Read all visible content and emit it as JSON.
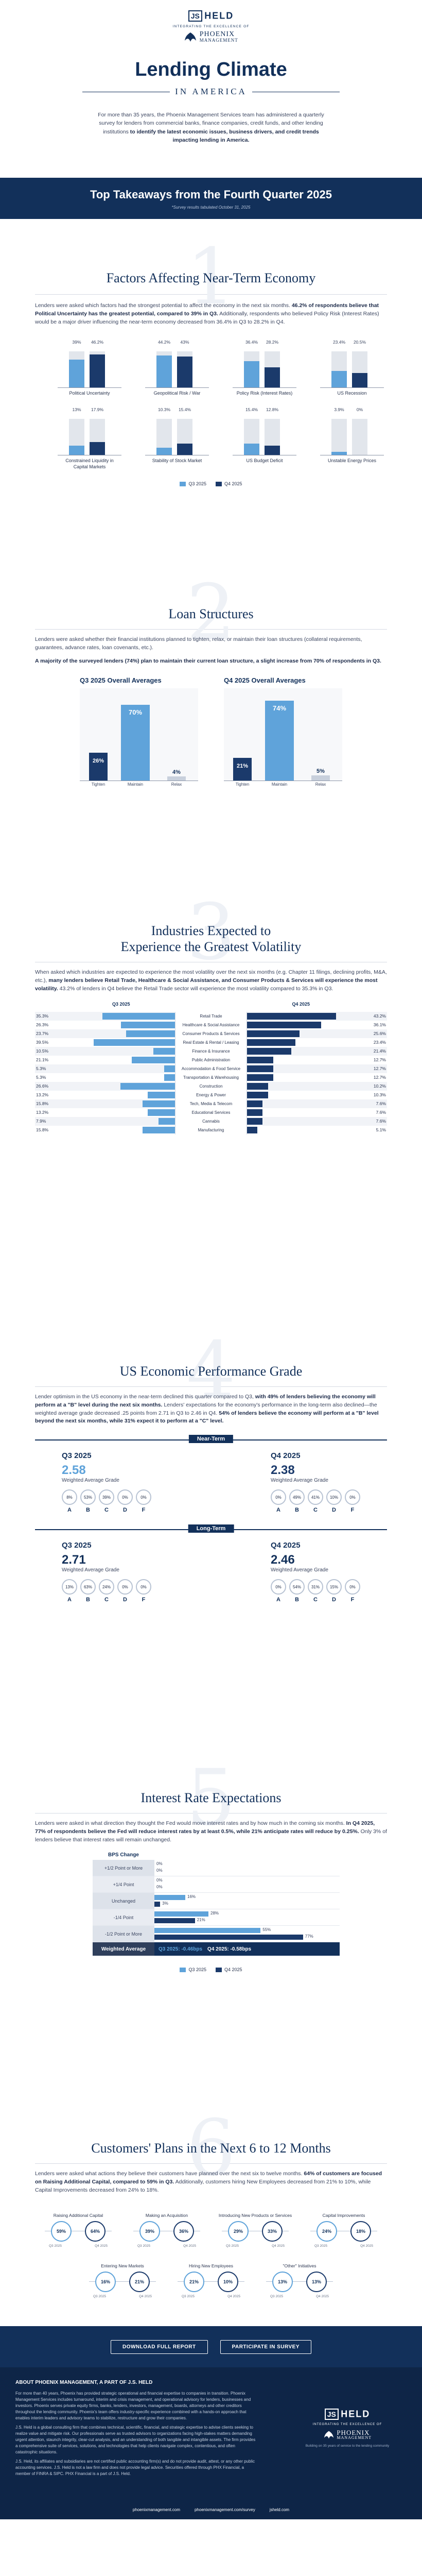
{
  "header": {
    "brand_js": "JS",
    "brand_held": "HELD",
    "tag": "INTEGRATING THE EXCELLENCE OF",
    "pm_line1": "PHOENIX",
    "pm_line2": "MANAGEMENT"
  },
  "hero": {
    "title": "Lending Climate",
    "subtitle": "IN AMERICA",
    "intro1": "For more than 35 years, the Phoenix Management Services team has administered a quarterly survey for lenders from commercial banks, finance companies, credit funds, and other lending institutions ",
    "intro_bold": "to identify the latest economic issues, business drivers, and credit trends impacting lending in America."
  },
  "banner": {
    "title": "Top Takeaways from the Fourth Quarter 2025",
    "sub": "*Survey results tabulated October 31, 2025"
  },
  "s1": {
    "num": "1",
    "title": "Factors Affecting Near-Term Economy",
    "p1": "Lenders were asked which factors had the strongest potential to affect the economy in the next six months. ",
    "p1b": "46.2% of respondents believe that Political Uncertainty has the greatest potential, compared to 39% in Q3.",
    "p1c": " Additionally, respondents who believed Policy Risk (Interest Rates) would be a major driver influencing the near-term economy decreased from 36.4% in Q3 to 28.2% in Q4.",
    "legend_q3": "Q3 2025",
    "legend_q4": "Q4 2025",
    "row1": [
      {
        "label": "Political Uncertainty",
        "q3": 39.0,
        "q4": 46.2,
        "t3": "39%",
        "t4": "46.2%"
      },
      {
        "label": "Geopolitical Risk / War",
        "q3": 44.2,
        "q4": 43.0,
        "t3": "44.2%",
        "t4": "43%"
      },
      {
        "label": "Policy Risk (Interest Rates)",
        "q3": 36.4,
        "q4": 28.2,
        "t3": "36.4%",
        "t4": "28.2%"
      },
      {
        "label": "US Recession",
        "q3": 23.4,
        "q4": 20.5,
        "t3": "23.4%",
        "t4": "20.5%"
      }
    ],
    "row2": [
      {
        "label": "Constrained Liquidity in Capital Markets",
        "q3": 13.0,
        "q4": 17.9,
        "t3": "13%",
        "t4": "17.9%"
      },
      {
        "label": "Stability of Stock Market",
        "q3": 10.3,
        "q4": 15.4,
        "t3": "10.3%",
        "t4": "15.4%"
      },
      {
        "label": "US Budget Deficit",
        "q3": 15.4,
        "q4": 12.8,
        "t3": "15.4%",
        "t4": "12.8%"
      },
      {
        "label": "Unstable Energy Prices",
        "q3": 3.9,
        "q4": 0,
        "t3": "3.9%",
        "t4": "0%"
      }
    ]
  },
  "s2": {
    "num": "2",
    "title": "Loan Structures",
    "p1": "Lenders were asked whether their financial institutions planned to tighten, relax, or maintain their loan structures (collateral requirements, guarantees, advance rates, loan covenants, etc.).",
    "p2": "A majority of the surveyed lenders (74%) plan to maintain their current loan structure, a slight increase from 70% of respondents in Q3.",
    "q3_title": "Q3 2025 Overall Averages",
    "q4_title": "Q4 2025 Overall Averages",
    "q3": [
      {
        "label": "Tighten",
        "v": 26,
        "t": "26%"
      },
      {
        "label": "Maintain",
        "v": 70,
        "t": "70%"
      },
      {
        "label": "Relax",
        "v": 4,
        "t": "4%"
      }
    ],
    "q4": [
      {
        "label": "Tighten",
        "v": 21,
        "t": "21%"
      },
      {
        "label": "Maintain",
        "v": 74,
        "t": "74%"
      },
      {
        "label": "Relax",
        "v": 5,
        "t": "5%"
      }
    ]
  },
  "s3": {
    "num": "3",
    "title1": "Industries Expected to",
    "title2": "Experience the Greatest Volatility",
    "p1": "When asked which industries are expected to experience the most volatility over the next six months (e.g. Chapter 11 filings, declining profits, M&A, etc.), ",
    "p1b": "many lenders believe Retail Trade, Healthcare & Social Assistance, and Consumer Products & Services will experience the most volatility.",
    "p1c": " 43.2% of lenders in Q4 believe the Retail Trade sector will experience the most volatility compared to 35.3% in Q3.",
    "hq3": "Q3 2025",
    "hq4": "Q4 2025",
    "rows": [
      {
        "label": "Retail Trade",
        "q3": 35.3,
        "q4": 43.2,
        "t3": "35.3%",
        "t4": "43.2%"
      },
      {
        "label": "Healthcare & Social Assistance",
        "q3": 26.3,
        "q4": 36.1,
        "t3": "26.3%",
        "t4": "36.1%"
      },
      {
        "label": "Consumer Products & Services",
        "q3": 23.7,
        "q4": 25.6,
        "t3": "23.7%",
        "t4": "25.6%"
      },
      {
        "label": "Real Estate & Rental / Leasing",
        "q3": 39.5,
        "q4": 23.4,
        "t3": "39.5%",
        "t4": "23.4%"
      },
      {
        "label": "Finance & Insurance",
        "q3": 10.5,
        "q4": 21.4,
        "t3": "10.5%",
        "t4": "21.4%"
      },
      {
        "label": "Public Administration",
        "q3": 21.1,
        "q4": 12.7,
        "t3": "21.1%",
        "t4": "12.7%"
      },
      {
        "label": "Accommodation & Food Service",
        "q3": 5.3,
        "q4": 12.7,
        "t3": "5.3%",
        "t4": "12.7%"
      },
      {
        "label": "Transportation & Warehousing",
        "q3": 5.3,
        "q4": 12.7,
        "t3": "5.3%",
        "t4": "12.7%"
      },
      {
        "label": "Construction",
        "q3": 26.6,
        "q4": 10.2,
        "t3": "26.6%",
        "t4": "10.2%"
      },
      {
        "label": "Energy & Power",
        "q3": 13.2,
        "q4": 10.3,
        "t3": "13.2%",
        "t4": "10.3%"
      },
      {
        "label": "Tech, Media & Telecom",
        "q3": 15.8,
        "q4": 7.6,
        "t3": "15.8%",
        "t4": "7.6%"
      },
      {
        "label": "Educational Services",
        "q3": 13.2,
        "q4": 7.6,
        "t3": "13.2%",
        "t4": "7.6%"
      },
      {
        "label": "Cannabis",
        "q3": 7.9,
        "q4": 7.6,
        "t3": "7.9%",
        "t4": "7.6%"
      },
      {
        "label": "Manufacturing",
        "q3": 15.8,
        "q4": 5.1,
        "t3": "15.8%",
        "t4": "5.1%"
      }
    ]
  },
  "s4": {
    "num": "4",
    "title": "US Economic Performance Grade",
    "p1": "Lender optimism in the US economy in the near-term declined this quarter compared to Q3, ",
    "p1b": "with 49% of lenders believing the economy will perform at a \"B\" level during the next six months.",
    "p1c": " Lenders' expectations for the economy's performance in the long-term also declined—the weighted average grade decreased .25 points from 2.71 in Q3 to 2.46 in Q4. ",
    "p1d": "54% of lenders believe the economy will perform at a \"B\" level beyond the next six months, while 31% expect it to perform at a \"C\" level.",
    "near": "Near-Term",
    "long": "Long-Term",
    "wag": "Weighted Average Grade",
    "grades": [
      "A",
      "B",
      "C",
      "D",
      "F"
    ],
    "nq3": {
      "label": "Q3 2025",
      "avg": "2.58",
      "v": [
        "8%",
        "53%",
        "39%",
        "0%",
        "0%"
      ]
    },
    "nq4": {
      "label": "Q4 2025",
      "avg": "2.38",
      "v": [
        "0%",
        "49%",
        "41%",
        "10%",
        "0%"
      ]
    },
    "lq3": {
      "label": "Q3 2025",
      "avg": "2.71",
      "v": [
        "13%",
        "63%",
        "24%",
        "0%",
        "0%"
      ]
    },
    "lq4": {
      "label": "Q4 2025",
      "avg": "2.46",
      "v": [
        "0%",
        "54%",
        "31%",
        "15%",
        "0%"
      ]
    }
  },
  "s5": {
    "num": "5",
    "title": "Interest Rate Expectations",
    "p1": "Lenders were asked in what direction they thought the Fed would move interest rates and by how much in the coming six months. ",
    "p1b": "In Q4 2025, 77% of respondents believe the Fed will reduce interest rates by at least 0.5%, while 21% anticipate rates will reduce by 0.25%.",
    "p1c": " Only 3% of lenders believe that interest rates will remain unchanged.",
    "head": "BPS Change",
    "rows": [
      {
        "label": "+1/2 Point or More",
        "q3": 0,
        "q4": 0,
        "t3": "0%",
        "t4": "0%"
      },
      {
        "label": "+1/4 Point",
        "q3": 0,
        "q4": 0,
        "t3": "0%",
        "t4": "0%"
      },
      {
        "label": "Unchanged",
        "q3": 16,
        "q4": 3,
        "t3": "16%",
        "t4": "3%"
      },
      {
        "label": "-1/4 Point",
        "q3": 28,
        "q4": 21,
        "t3": "28%",
        "t4": "21%"
      },
      {
        "label": "-1/2 Point or More",
        "q3": 55,
        "q4": 77,
        "t3": "55%",
        "t4": "77%"
      }
    ],
    "wa_label": "Weighted Average",
    "wa_q3": "Q3 2025: -0.46bps",
    "wa_q4": "Q4 2025: -0.58bps",
    "legend_q3": "Q3 2025",
    "legend_q4": "Q4 2025"
  },
  "s6": {
    "num": "6",
    "title": "Customers' Plans in the Next 6 to 12 Months",
    "p1": "Lenders were asked what actions they believe their customers have planned over the next six to twelve months. ",
    "p1b": "64% of customers are focused on Raising Additional Capital, compared to 59% in Q3.",
    "p1c": " Additionally, customers hiring New Employees decreased from 21% to 10%, while Capital Improvements decreased from 24% to 18%.",
    "row1": [
      {
        "label": "Raising Additional Capital",
        "q3": "59%",
        "q4": "64%"
      },
      {
        "label": "Making an Acquisition",
        "q3": "39%",
        "q4": "36%"
      },
      {
        "label": "Introducing New Products or Services",
        "q3": "29%",
        "q4": "33%"
      },
      {
        "label": "Capital Improvements",
        "q3": "24%",
        "q4": "18%"
      }
    ],
    "row2": [
      {
        "label": "Entering New Markets",
        "q3": "16%",
        "q4": "21%"
      },
      {
        "label": "Hiring New Employees",
        "q3": "21%",
        "q4": "10%"
      },
      {
        "label": "\"Other\" Initiatives",
        "q3": "13%",
        "q4": "13%"
      }
    ],
    "small_q3": "Q3 2025",
    "small_q4": "Q4 2025"
  },
  "cta": {
    "download": "DOWNLOAD FULL REPORT",
    "participate": "PARTICIPATE IN SURVEY"
  },
  "footer": {
    "about_title": "ABOUT PHOENIX MANAGEMENT, A PART OF J.S. HELD",
    "about1": "For more than 40 years, Phoenix has provided strategic operational and financial expertise to companies in transition. Phoenix Management Services includes turnaround, interim and crisis management, and operational advisory for lenders, businesses and investors. Phoenix serves private equity firms, banks, lenders, investors, management, boards, attorneys and other creditors throughout the lending community. Phoenix's team offers industry-specific experience combined with a hands-on approach that enables interim leaders and advisory teams to stabilize, restructure and grow their companies.",
    "about2": "J.S. Held is a global consulting firm that combines technical, scientific, financial, and strategic expertise to advise clients seeking to realize value and mitigate risk. Our professionals serve as trusted advisors to organizations facing high-stakes matters demanding urgent attention, staunch integrity, clear-cut analysis, and an understanding of both tangible and intangible assets. The firm provides a comprehensive suite of services, solutions, and technologies that help clients navigate complex, contentious, and often catastrophic situations.",
    "about3": "J.S. Held, its affiliates and subsidiaries are not certified public accounting firm(s) and do not provide audit, attest, or any other public accounting services. J.S. Held is not a law firm and does not provide legal advice. Securities offered through PHX Financial, a member of FINRA & SIPC. PHX Financial is a part of J.S. Held.",
    "links": [
      "phoenixmanagement.com",
      "phoenixmanagement.com/survey",
      "jsheld.com"
    ],
    "pm": "PHOENIX",
    "mgmt": "MANAGEMENT",
    "tag": "INTEGRATING THE EXCELLENCE OF",
    "bt": "Building on 35 years of service to the lending community"
  },
  "colors": {
    "q3": "#5fa3da",
    "q4": "#1b3a6b",
    "navy": "#12305a"
  }
}
